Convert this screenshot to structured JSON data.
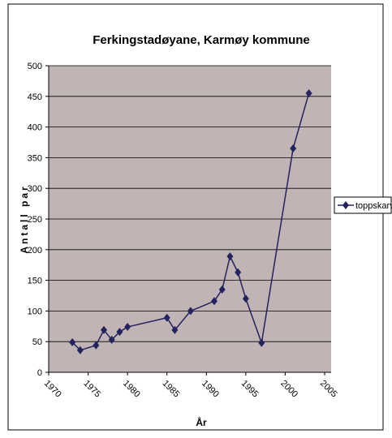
{
  "chart_data": {
    "type": "line",
    "title": "Ferkingstadøyane, Karmøy kommune",
    "x_label": "År",
    "y_label": "Antall par",
    "x": [
      1973,
      1974,
      1976,
      1977,
      1978,
      1979,
      1980,
      1985,
      1986,
      1988,
      1991,
      1992,
      1993,
      1994,
      1995,
      1997,
      2001,
      2003
    ],
    "series": [
      {
        "name": "toppskarv",
        "color": "#23235f",
        "values": [
          49,
          36,
          44,
          69,
          53,
          66,
          74,
          89,
          69,
          100,
          116,
          135,
          189,
          163,
          120,
          48,
          365,
          455
        ]
      }
    ],
    "xlim": [
      1970,
      2005
    ],
    "xticks": [
      1970,
      1975,
      1980,
      1985,
      1990,
      1995,
      2000,
      2005
    ],
    "ylim": [
      0,
      500
    ],
    "yticks": [
      0,
      50,
      100,
      150,
      200,
      250,
      300,
      350,
      400,
      450,
      500
    ],
    "grid": true,
    "legend": "right",
    "plot_background": "#c0b4b4"
  }
}
